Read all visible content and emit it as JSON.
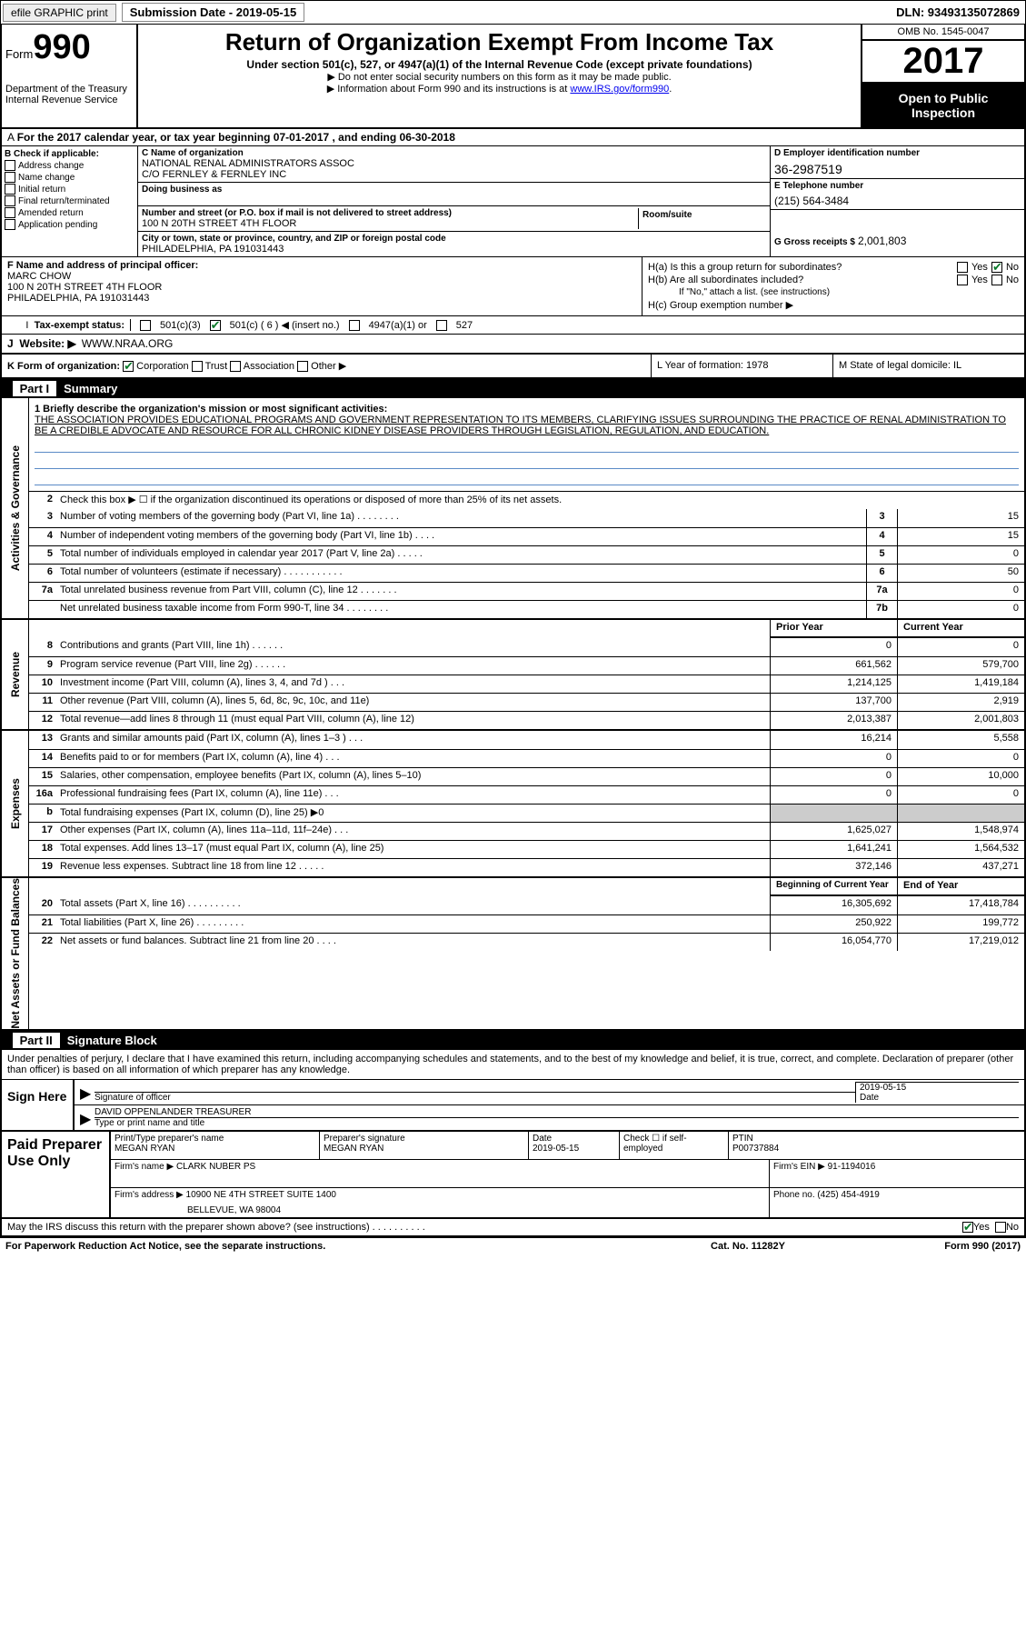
{
  "topbar": {
    "efile": "efile GRAPHIC print",
    "sub_label": "Submission Date - 2019-05-15",
    "dln": "DLN: 93493135072869"
  },
  "header": {
    "form_label": "Form",
    "form_no": "990",
    "dept": "Department of the Treasury\nInternal Revenue Service",
    "title": "Return of Organization Exempt From Income Tax",
    "subtitle": "Under section 501(c), 527, or 4947(a)(1) of the Internal Revenue Code (except private foundations)",
    "note1": "▶ Do not enter social security numbers on this form as it may be made public.",
    "note2_pre": "▶ Information about Form 990 and its instructions is at ",
    "note2_link": "www.IRS.gov/form990",
    "omb": "OMB No. 1545-0047",
    "year": "2017",
    "otp": "Open to Public Inspection"
  },
  "period": "For the 2017 calendar year, or tax year beginning 07-01-2017   , and ending 06-30-2018",
  "checkB": {
    "title": "B Check if applicable:",
    "items": [
      "Address change",
      "Name change",
      "Initial return",
      "Final return/terminated",
      "Amended return",
      "Application pending"
    ]
  },
  "boxC": {
    "name_lbl": "C Name of organization",
    "name": "NATIONAL RENAL ADMINISTRATORS ASSOC",
    "co": "C/O FERNLEY & FERNLEY INC",
    "dba_lbl": "Doing business as",
    "addr_lbl": "Number and street (or P.O. box if mail is not delivered to street address)",
    "room_lbl": "Room/suite",
    "addr": "100 N 20TH STREET 4TH FLOOR",
    "city_lbl": "City or town, state or province, country, and ZIP or foreign postal code",
    "city": "PHILADELPHIA, PA  191031443"
  },
  "boxD": {
    "lbl": "D Employer identification number",
    "val": "36-2987519"
  },
  "boxE": {
    "lbl": "E Telephone number",
    "val": "(215) 564-3484"
  },
  "boxG": {
    "lbl": "G Gross receipts $",
    "val": "2,001,803"
  },
  "boxF": {
    "lbl": "F  Name and address of principal officer:",
    "name": "MARC CHOW",
    "addr1": "100 N 20TH STREET 4TH FLOOR",
    "addr2": "PHILADELPHIA, PA  191031443"
  },
  "boxH": {
    "a": "H(a)  Is this a group return for subordinates?",
    "b": "H(b)  Are all subordinates included?",
    "b_note": "If \"No,\" attach a list. (see instructions)",
    "c": "H(c)  Group exemption number ▶"
  },
  "taxex": {
    "lbl": "Tax-exempt status:",
    "o1": "501(c)(3)",
    "o2": "501(c) ( 6 ) ◀ (insert no.)",
    "o3": "4947(a)(1) or",
    "o4": "527"
  },
  "website": {
    "lbl": "Website: ▶",
    "val": "WWW.NRAA.ORG"
  },
  "kline": {
    "k": "K Form of organization:",
    "opts": [
      "Corporation",
      "Trust",
      "Association",
      "Other ▶"
    ],
    "l": "L Year of formation: 1978",
    "m": "M State of legal domicile: IL"
  },
  "part1": {
    "num": "Part I",
    "title": "Summary"
  },
  "mission": {
    "l1": "1  Briefly describe the organization's mission or most significant activities:",
    "txt": "THE ASSOCIATION PROVIDES EDUCATIONAL PROGRAMS AND GOVERNMENT REPRESENTATION TO ITS MEMBERS, CLARIFYING ISSUES SURROUNDING THE PRACTICE OF RENAL ADMINISTRATION TO BE A CREDIBLE ADVOCATE AND RESOURCE FOR ALL CHRONIC KIDNEY DISEASE PROVIDERS THROUGH LEGISLATION, REGULATION, AND EDUCATION.",
    "l2": "Check this box ▶ ☐  if the organization discontinued its operations or disposed of more than 25% of its net assets."
  },
  "gov_lines": [
    {
      "n": "3",
      "t": "Number of voting members of the governing body (Part VI, line 1a)   .    .    .    .    .    .    .    .",
      "b": "3",
      "a": "15"
    },
    {
      "n": "4",
      "t": "Number of independent voting members of the governing body (Part VI, line 1b)    .    .    .    .",
      "b": "4",
      "a": "15"
    },
    {
      "n": "5",
      "t": "Total number of individuals employed in calendar year 2017 (Part V, line 2a)   .    .    .    .    .",
      "b": "5",
      "a": "0"
    },
    {
      "n": "6",
      "t": "Total number of volunteers (estimate if necessary)    .    .    .    .    .    .    .    .    .    .    .",
      "b": "6",
      "a": "50"
    },
    {
      "n": "7a",
      "t": "Total unrelated business revenue from Part VIII, column (C), line 12    .    .    .    .    .    .    .",
      "b": "7a",
      "a": "0"
    },
    {
      "n": "",
      "t": "Net unrelated business taxable income from Form 990-T, line 34    .    .    .    .    .    .    .    .",
      "b": "7b",
      "a": "0"
    }
  ],
  "year_hdr": {
    "py": "Prior Year",
    "cy": "Current Year"
  },
  "rev_lines": [
    {
      "n": "8",
      "t": "Contributions and grants (Part VIII, line 1h)   .    .    .    .    .    .",
      "py": "0",
      "cy": "0"
    },
    {
      "n": "9",
      "t": "Program service revenue (Part VIII, line 2g)    .    .    .    .    .    .",
      "py": "661,562",
      "cy": "579,700"
    },
    {
      "n": "10",
      "t": "Investment income (Part VIII, column (A), lines 3, 4, and 7d )   .    .    .",
      "py": "1,214,125",
      "cy": "1,419,184"
    },
    {
      "n": "11",
      "t": "Other revenue (Part VIII, column (A), lines 5, 6d, 8c, 9c, 10c, and 11e)",
      "py": "137,700",
      "cy": "2,919"
    },
    {
      "n": "12",
      "t": "Total revenue—add lines 8 through 11 (must equal Part VIII, column (A), line 12)",
      "py": "2,013,387",
      "cy": "2,001,803"
    }
  ],
  "exp_lines": [
    {
      "n": "13",
      "t": "Grants and similar amounts paid (Part IX, column (A), lines 1–3 )   .    .    .",
      "py": "16,214",
      "cy": "5,558"
    },
    {
      "n": "14",
      "t": "Benefits paid to or for members (Part IX, column (A), line 4)   .    .    .",
      "py": "0",
      "cy": "0"
    },
    {
      "n": "15",
      "t": "Salaries, other compensation, employee benefits (Part IX, column (A), lines 5–10)",
      "py": "0",
      "cy": "10,000"
    },
    {
      "n": "16a",
      "t": "Professional fundraising fees (Part IX, column (A), line 11e)   .    .    .",
      "py": "0",
      "cy": "0"
    },
    {
      "n": "b",
      "t": "Total fundraising expenses (Part IX, column (D), line 25) ▶0",
      "py": "",
      "cy": "",
      "shade": true
    },
    {
      "n": "17",
      "t": "Other expenses (Part IX, column (A), lines 11a–11d, 11f–24e)   .    .    .",
      "py": "1,625,027",
      "cy": "1,548,974"
    },
    {
      "n": "18",
      "t": "Total expenses. Add lines 13–17 (must equal Part IX, column (A), line 25)",
      "py": "1,641,241",
      "cy": "1,564,532"
    },
    {
      "n": "19",
      "t": "Revenue less expenses. Subtract line 18 from line 12   .    .    .    .    .",
      "py": "372,146",
      "cy": "437,271"
    }
  ],
  "na_hdr": {
    "py": "Beginning of Current Year",
    "cy": "End of Year"
  },
  "na_lines": [
    {
      "n": "20",
      "t": "Total assets (Part X, line 16)   .    .    .    .    .    .    .    .    .    .",
      "py": "16,305,692",
      "cy": "17,418,784"
    },
    {
      "n": "21",
      "t": "Total liabilities (Part X, line 26)   .    .    .    .    .    .    .    .    .",
      "py": "250,922",
      "cy": "199,772"
    },
    {
      "n": "22",
      "t": "Net assets or fund balances. Subtract line 21 from line 20   .    .    .    .",
      "py": "16,054,770",
      "cy": "17,219,012"
    }
  ],
  "vlabels": {
    "gov": "Activities & Governance",
    "rev": "Revenue",
    "exp": "Expenses",
    "na": "Net Assets or Fund Balances"
  },
  "part2": {
    "num": "Part II",
    "title": "Signature Block"
  },
  "perjury": "Under penalties of perjury, I declare that I have examined this return, including accompanying schedules and statements, and to the best of my knowledge and belief, it is true, correct, and complete. Declaration of preparer (other than officer) is based on all information of which preparer has any knowledge.",
  "sign": {
    "here": "Sign Here",
    "sig_of": "Signature of officer",
    "date": "2019-05-15",
    "date_lbl": "Date",
    "name": "DAVID OPPENLANDER  TREASURER",
    "name_lbl": "Type or print name and title"
  },
  "paid": {
    "title": "Paid Preparer Use Only",
    "pt_lbl": "Print/Type preparer's name",
    "pt_val": "MEGAN RYAN",
    "ps_lbl": "Preparer's signature",
    "ps_val": "MEGAN RYAN",
    "d_lbl": "Date",
    "d_val": "2019-05-15",
    "se_lbl": "Check ☐ if self-employed",
    "ptin_lbl": "PTIN",
    "ptin_val": "P00737884",
    "firm_lbl": "Firm's name    ▶",
    "firm_val": "CLARK NUBER PS",
    "ein_lbl": "Firm's EIN ▶",
    "ein_val": "91-1194016",
    "addr_lbl": "Firm's address ▶",
    "addr_val": "10900 NE 4TH STREET SUITE 1400",
    "addr2": "BELLEVUE, WA  98004",
    "ph_lbl": "Phone no.",
    "ph_val": "(425) 454-4919"
  },
  "discuss": "May the IRS discuss this return with the preparer shown above? (see instructions)   .    .    .    .    .    .    .    .    .    .",
  "footer": {
    "f1": "For Paperwork Reduction Act Notice, see the separate instructions.",
    "f2": "Cat. No. 11282Y",
    "f3": "Form 990 (2017)"
  }
}
